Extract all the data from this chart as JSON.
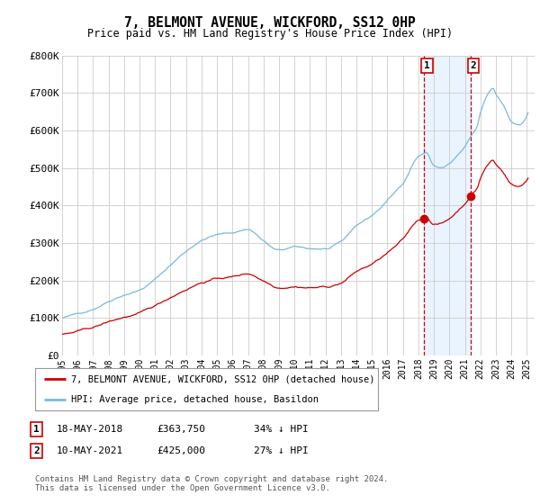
{
  "title": "7, BELMONT AVENUE, WICKFORD, SS12 0HP",
  "subtitle": "Price paid vs. HM Land Registry's House Price Index (HPI)",
  "background_color": "#ffffff",
  "plot_bg_color": "#ffffff",
  "grid_color": "#cccccc",
  "hpi_color": "#7ab8e0",
  "price_color": "#cc0000",
  "sale1_x": 2018.37,
  "sale1_y": 363750,
  "sale2_x": 2021.36,
  "sale2_y": 425000,
  "xmin": 1995.0,
  "xmax": 2025.5,
  "ymin": 0,
  "ymax": 800000,
  "yticks": [
    0,
    100000,
    200000,
    300000,
    400000,
    500000,
    600000,
    700000,
    800000
  ],
  "ytick_labels": [
    "£0",
    "£100K",
    "£200K",
    "£300K",
    "£400K",
    "£500K",
    "£600K",
    "£700K",
    "£800K"
  ],
  "xticks": [
    1995,
    1996,
    1997,
    1998,
    1999,
    2000,
    2001,
    2002,
    2003,
    2004,
    2005,
    2006,
    2007,
    2008,
    2009,
    2010,
    2011,
    2012,
    2013,
    2014,
    2015,
    2016,
    2017,
    2018,
    2019,
    2020,
    2021,
    2022,
    2023,
    2024,
    2025
  ],
  "legend_line1": "7, BELMONT AVENUE, WICKFORD, SS12 0HP (detached house)",
  "legend_line2": "HPI: Average price, detached house, Basildon",
  "annotation1_date": "18-MAY-2018",
  "annotation1_price": "£363,750",
  "annotation1_pct": "34% ↓ HPI",
  "annotation2_date": "10-MAY-2021",
  "annotation2_price": "£425,000",
  "annotation2_pct": "27% ↓ HPI",
  "footnote": "Contains HM Land Registry data © Crown copyright and database right 2024.\nThis data is licensed under the Open Government Licence v3.0.",
  "shade_color": "#ddeeff",
  "shade_alpha": 0.6
}
